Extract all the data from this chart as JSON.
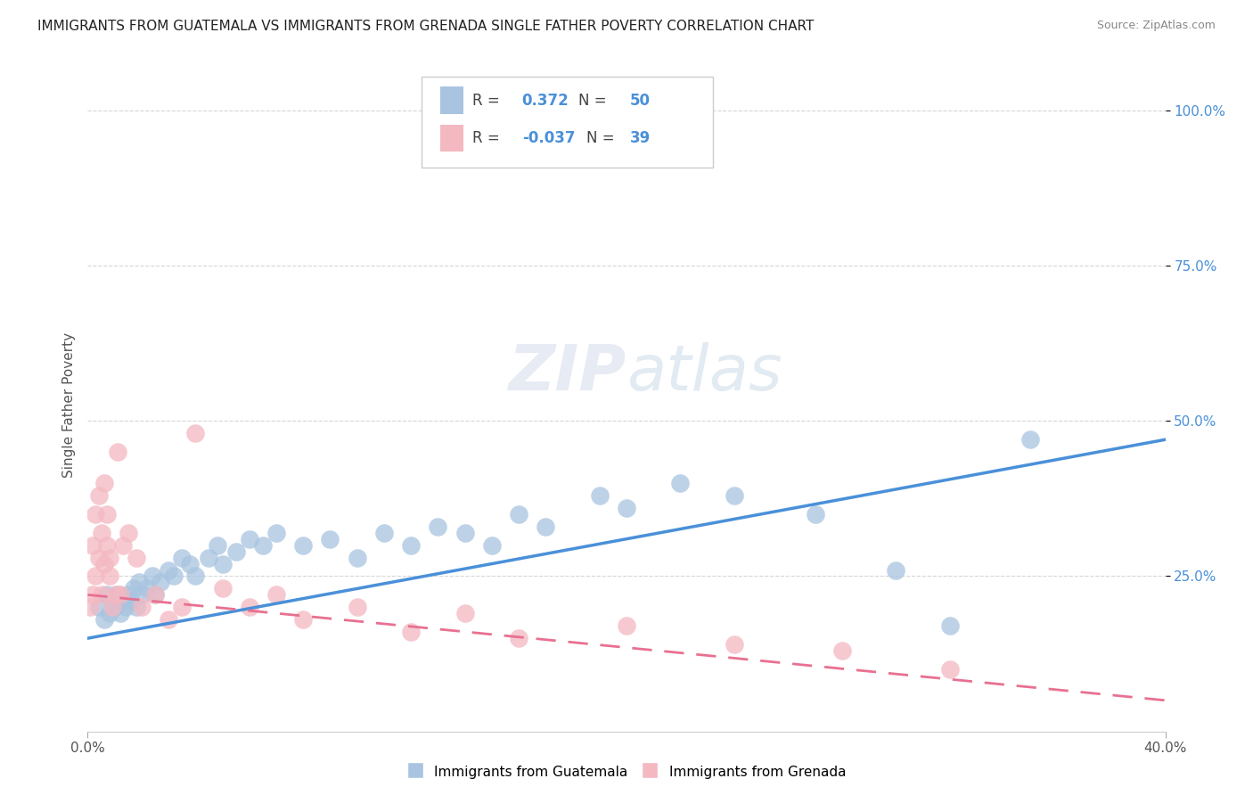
{
  "title": "IMMIGRANTS FROM GUATEMALA VS IMMIGRANTS FROM GRENADA SINGLE FATHER POVERTY CORRELATION CHART",
  "source": "Source: ZipAtlas.com",
  "ylabel": "Single Father Poverty",
  "x_min": 0.0,
  "x_max": 0.4,
  "y_min": 0.0,
  "y_max": 1.05,
  "blue_color": "#a8c4e0",
  "pink_color": "#f4b8c1",
  "blue_line_color": "#4a90d9",
  "pink_line_color": "#e87090",
  "r1": 0.372,
  "n1": 50,
  "r2": -0.037,
  "n2": 39,
  "watermark": "ZIPatlas",
  "blue_scatter_x": [
    0.004,
    0.006,
    0.007,
    0.008,
    0.009,
    0.01,
    0.011,
    0.012,
    0.013,
    0.014,
    0.015,
    0.016,
    0.017,
    0.018,
    0.019,
    0.02,
    0.022,
    0.024,
    0.025,
    0.027,
    0.03,
    0.032,
    0.035,
    0.038,
    0.04,
    0.045,
    0.048,
    0.05,
    0.055,
    0.06,
    0.065,
    0.07,
    0.08,
    0.09,
    0.1,
    0.11,
    0.12,
    0.13,
    0.14,
    0.15,
    0.16,
    0.17,
    0.19,
    0.2,
    0.22,
    0.24,
    0.27,
    0.3,
    0.32,
    0.35
  ],
  "blue_scatter_y": [
    0.2,
    0.18,
    0.22,
    0.19,
    0.21,
    0.2,
    0.22,
    0.19,
    0.21,
    0.2,
    0.22,
    0.21,
    0.23,
    0.2,
    0.24,
    0.22,
    0.23,
    0.25,
    0.22,
    0.24,
    0.26,
    0.25,
    0.28,
    0.27,
    0.25,
    0.28,
    0.3,
    0.27,
    0.29,
    0.31,
    0.3,
    0.32,
    0.3,
    0.31,
    0.28,
    0.32,
    0.3,
    0.33,
    0.32,
    0.3,
    0.35,
    0.33,
    0.38,
    0.36,
    0.4,
    0.38,
    0.35,
    0.26,
    0.17,
    0.47
  ],
  "pink_scatter_x": [
    0.001,
    0.002,
    0.002,
    0.003,
    0.003,
    0.004,
    0.004,
    0.005,
    0.005,
    0.006,
    0.006,
    0.007,
    0.007,
    0.008,
    0.008,
    0.009,
    0.01,
    0.011,
    0.012,
    0.013,
    0.015,
    0.018,
    0.02,
    0.025,
    0.03,
    0.035,
    0.04,
    0.05,
    0.06,
    0.07,
    0.08,
    0.1,
    0.12,
    0.14,
    0.16,
    0.2,
    0.24,
    0.28,
    0.32
  ],
  "pink_scatter_y": [
    0.2,
    0.22,
    0.3,
    0.25,
    0.35,
    0.28,
    0.38,
    0.22,
    0.32,
    0.27,
    0.4,
    0.3,
    0.35,
    0.25,
    0.28,
    0.2,
    0.22,
    0.45,
    0.22,
    0.3,
    0.32,
    0.28,
    0.2,
    0.22,
    0.18,
    0.2,
    0.48,
    0.23,
    0.2,
    0.22,
    0.18,
    0.2,
    0.16,
    0.19,
    0.15,
    0.17,
    0.14,
    0.13,
    0.1
  ],
  "blue_trend_x0": 0.0,
  "blue_trend_y0": 0.15,
  "blue_trend_x1": 0.4,
  "blue_trend_y1": 0.47,
  "pink_trend_x0": 0.0,
  "pink_trend_y0": 0.22,
  "pink_trend_x1": 0.4,
  "pink_trend_y1": 0.05
}
